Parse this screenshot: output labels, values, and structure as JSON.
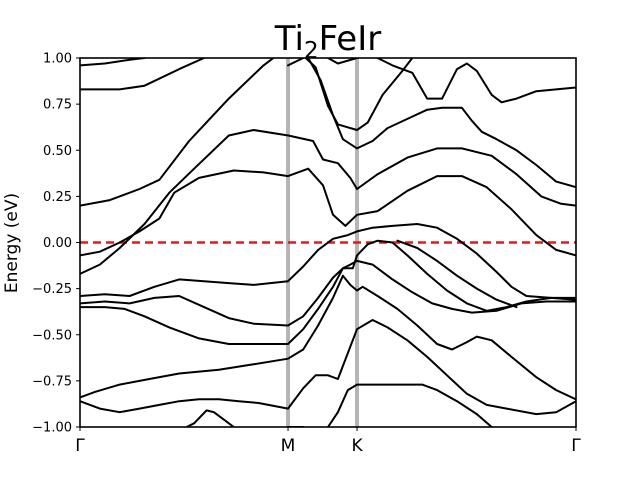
{
  "chart_data": {
    "type": "line",
    "title": "Ti2FeIr",
    "title_base": "Ti",
    "title_sub": "2",
    "title_rest": "FeIr",
    "xlabel": "",
    "ylabel": "Energy (eV)",
    "ylim": [
      -1.0,
      1.0
    ],
    "xlim": [
      0,
      1
    ],
    "yticks": [
      -1.0,
      -0.75,
      -0.5,
      -0.25,
      0.0,
      0.25,
      0.5,
      0.75,
      1.0
    ],
    "ytick_labels": [
      "−1.00",
      "−0.75",
      "−0.50",
      "−0.25",
      "0.00",
      "0.25",
      "0.50",
      "0.75",
      "1.00"
    ],
    "kpoints": [
      {
        "label": "Γ",
        "x": 0.0
      },
      {
        "label": "M",
        "x": 0.4194
      },
      {
        "label": "K",
        "x": 0.5585
      },
      {
        "label": "Γ",
        "x": 1.0
      }
    ],
    "fermi_level": 0.0,
    "colors": {
      "bands": "#000000",
      "fermi": "#e01b1b",
      "kline": "#b5b5b5"
    },
    "grid": false,
    "series": [
      {
        "values": [
          [
            0.0,
            0.96
          ],
          [
            0.05,
            0.97
          ],
          [
            0.1,
            0.99
          ],
          [
            0.13,
            1.0
          ]
        ]
      },
      {
        "values": [
          [
            0.0,
            0.83
          ],
          [
            0.08,
            0.83
          ],
          [
            0.13,
            0.85
          ],
          [
            0.2,
            0.94
          ],
          [
            0.25,
            1.0
          ]
        ]
      },
      {
        "values": [
          [
            0.0,
            0.2
          ],
          [
            0.06,
            0.23
          ],
          [
            0.12,
            0.29
          ],
          [
            0.16,
            0.34
          ],
          [
            0.22,
            0.55
          ],
          [
            0.3,
            0.78
          ],
          [
            0.37,
            0.96
          ],
          [
            0.39,
            1.0
          ]
        ]
      },
      {
        "values": [
          [
            0.0,
            -0.17
          ],
          [
            0.04,
            -0.12
          ],
          [
            0.08,
            -0.03
          ],
          [
            0.13,
            0.1
          ],
          [
            0.18,
            0.27
          ],
          [
            0.23,
            0.4
          ],
          [
            0.3,
            0.58
          ],
          [
            0.35,
            0.61
          ],
          [
            0.42,
            0.58
          ],
          [
            0.47,
            0.55
          ],
          [
            0.49,
            0.45
          ],
          [
            0.52,
            0.43
          ],
          [
            0.545,
            0.35
          ],
          [
            0.5585,
            0.29
          ],
          [
            0.6,
            0.37
          ],
          [
            0.66,
            0.46
          ],
          [
            0.72,
            0.51
          ],
          [
            0.77,
            0.51
          ],
          [
            0.83,
            0.47
          ],
          [
            0.88,
            0.37
          ],
          [
            0.93,
            0.25
          ],
          [
            0.97,
            0.21
          ],
          [
            1.0,
            0.2
          ]
        ]
      },
      {
        "values": [
          [
            0.0,
            -0.07
          ],
          [
            0.04,
            -0.05
          ],
          [
            0.08,
            0.0
          ],
          [
            0.12,
            0.06
          ],
          [
            0.16,
            0.13
          ],
          [
            0.19,
            0.27
          ],
          [
            0.24,
            0.35
          ],
          [
            0.31,
            0.39
          ],
          [
            0.37,
            0.38
          ],
          [
            0.4194,
            0.36
          ],
          [
            0.46,
            0.4
          ],
          [
            0.49,
            0.31
          ],
          [
            0.51,
            0.15
          ],
          [
            0.535,
            0.09
          ],
          [
            0.5585,
            0.15
          ],
          [
            0.6,
            0.17
          ],
          [
            0.66,
            0.28
          ],
          [
            0.72,
            0.36
          ],
          [
            0.77,
            0.36
          ],
          [
            0.82,
            0.3
          ],
          [
            0.87,
            0.18
          ],
          [
            0.92,
            0.04
          ],
          [
            0.96,
            -0.04
          ],
          [
            1.0,
            -0.07
          ]
        ]
      },
      {
        "values": [
          [
            0.0,
            -0.29
          ],
          [
            0.05,
            -0.28
          ],
          [
            0.1,
            -0.29
          ],
          [
            0.15,
            -0.24
          ],
          [
            0.2,
            -0.2
          ],
          [
            0.25,
            -0.21
          ],
          [
            0.3,
            -0.22
          ],
          [
            0.35,
            -0.23
          ],
          [
            0.4194,
            -0.21
          ],
          [
            0.45,
            -0.13
          ],
          [
            0.48,
            -0.04
          ],
          [
            0.51,
            0.02
          ],
          [
            0.54,
            0.04
          ],
          [
            0.5585,
            0.06
          ],
          [
            0.59,
            0.08
          ],
          [
            0.63,
            0.09
          ],
          [
            0.68,
            0.1
          ],
          [
            0.72,
            0.08
          ],
          [
            0.76,
            0.02
          ],
          [
            0.8,
            -0.06
          ],
          [
            0.84,
            -0.16
          ],
          [
            0.87,
            -0.24
          ],
          [
            0.9,
            -0.29
          ],
          [
            0.95,
            -0.3
          ],
          [
            1.0,
            -0.31
          ]
        ]
      },
      {
        "values": [
          [
            0.0,
            -0.33
          ],
          [
            0.05,
            -0.32
          ],
          [
            0.1,
            -0.33
          ],
          [
            0.15,
            -0.3
          ],
          [
            0.2,
            -0.29
          ],
          [
            0.25,
            -0.35
          ],
          [
            0.3,
            -0.41
          ],
          [
            0.35,
            -0.44
          ],
          [
            0.4194,
            -0.45
          ],
          [
            0.45,
            -0.4
          ],
          [
            0.48,
            -0.3
          ],
          [
            0.51,
            -0.19
          ],
          [
            0.53,
            -0.14
          ],
          [
            0.55,
            -0.14
          ],
          [
            0.5585,
            -0.07
          ],
          [
            0.58,
            -0.01
          ],
          [
            0.6,
            0.01
          ],
          [
            0.63,
            0.0
          ],
          [
            0.66,
            -0.07
          ],
          [
            0.7,
            -0.17
          ],
          [
            0.74,
            -0.26
          ],
          [
            0.78,
            -0.33
          ],
          [
            0.82,
            -0.37
          ],
          [
            0.86,
            -0.35
          ],
          [
            0.9,
            -0.32
          ],
          [
            0.95,
            -0.3
          ],
          [
            1.0,
            -0.3
          ]
        ]
      },
      {
        "values": [
          [
            0.0,
            -0.35
          ],
          [
            0.05,
            -0.35
          ],
          [
            0.09,
            -0.36
          ],
          [
            0.13,
            -0.4
          ],
          [
            0.18,
            -0.46
          ],
          [
            0.24,
            -0.52
          ],
          [
            0.3,
            -0.55
          ],
          [
            0.4194,
            -0.55
          ],
          [
            0.45,
            -0.47
          ],
          [
            0.48,
            -0.36
          ],
          [
            0.51,
            -0.24
          ],
          [
            0.53,
            -0.14
          ],
          [
            0.545,
            -0.12
          ],
          [
            0.5585,
            -0.1
          ],
          [
            0.59,
            -0.12
          ],
          [
            0.63,
            -0.2
          ],
          [
            0.67,
            -0.27
          ],
          [
            0.71,
            -0.33
          ],
          [
            0.75,
            -0.36
          ],
          [
            0.79,
            -0.38
          ],
          [
            0.84,
            -0.37
          ],
          [
            0.89,
            -0.33
          ],
          [
            0.94,
            -0.32
          ],
          [
            1.0,
            -0.32
          ]
        ]
      },
      {
        "values": [
          [
            0.0,
            -0.84
          ],
          [
            0.03,
            -0.81
          ],
          [
            0.08,
            -0.77
          ],
          [
            0.14,
            -0.74
          ],
          [
            0.2,
            -0.71
          ],
          [
            0.28,
            -0.69
          ],
          [
            0.35,
            -0.66
          ],
          [
            0.4194,
            -0.63
          ],
          [
            0.45,
            -0.58
          ],
          [
            0.48,
            -0.45
          ],
          [
            0.51,
            -0.3
          ],
          [
            0.53,
            -0.18
          ],
          [
            0.545,
            -0.23
          ],
          [
            0.5585,
            -0.26
          ],
          [
            0.57,
            -0.24
          ],
          [
            0.6,
            -0.29
          ],
          [
            0.64,
            -0.36
          ],
          [
            0.68,
            -0.45
          ],
          [
            0.72,
            -0.55
          ],
          [
            0.75,
            -0.58
          ],
          [
            0.78,
            -0.54
          ],
          [
            0.8,
            -0.51
          ],
          [
            0.83,
            -0.53
          ],
          [
            0.87,
            -0.62
          ],
          [
            0.92,
            -0.73
          ],
          [
            0.96,
            -0.8
          ],
          [
            1.0,
            -0.85
          ]
        ]
      },
      {
        "values": [
          [
            0.0,
            -0.86
          ],
          [
            0.04,
            -0.9
          ],
          [
            0.08,
            -0.92
          ],
          [
            0.12,
            -0.9
          ],
          [
            0.16,
            -0.88
          ],
          [
            0.2,
            -0.86
          ],
          [
            0.24,
            -0.85
          ],
          [
            0.28,
            -0.85
          ],
          [
            0.32,
            -0.86
          ],
          [
            0.36,
            -0.87
          ],
          [
            0.4194,
            -0.9
          ],
          [
            0.45,
            -0.79
          ],
          [
            0.475,
            -0.72
          ],
          [
            0.5,
            -0.72
          ],
          [
            0.52,
            -0.74
          ],
          [
            0.5585,
            -0.47
          ],
          [
            0.59,
            -0.42
          ],
          [
            0.62,
            -0.46
          ],
          [
            0.66,
            -0.53
          ],
          [
            0.7,
            -0.62
          ],
          [
            0.74,
            -0.72
          ],
          [
            0.78,
            -0.82
          ],
          [
            0.82,
            -0.88
          ],
          [
            0.86,
            -0.9
          ],
          [
            0.92,
            -0.93
          ],
          [
            0.96,
            -0.92
          ],
          [
            1.0,
            -0.86
          ]
        ]
      },
      {
        "values": [
          [
            0.215,
            -1.0
          ],
          [
            0.23,
            -0.98
          ],
          [
            0.255,
            -0.91
          ],
          [
            0.27,
            -0.92
          ],
          [
            0.29,
            -0.96
          ],
          [
            0.31,
            -1.0
          ]
        ]
      },
      {
        "values": [
          [
            0.5,
            -1.0
          ],
          [
            0.52,
            -0.92
          ],
          [
            0.54,
            -0.8
          ],
          [
            0.5585,
            -0.77
          ],
          [
            0.6,
            -0.77
          ],
          [
            0.66,
            -0.77
          ],
          [
            0.69,
            -0.77
          ],
          [
            0.72,
            -0.8
          ],
          [
            0.76,
            -0.86
          ],
          [
            0.8,
            -0.93
          ],
          [
            0.83,
            -1.0
          ]
        ]
      },
      {
        "values": [
          [
            0.4194,
            -1.0
          ],
          [
            0.44,
            -1.0
          ],
          [
            0.45,
            -1.0
          ]
        ]
      },
      {
        "values": [
          [
            0.455,
            1.0
          ],
          [
            0.475,
            0.95
          ],
          [
            0.5,
            0.74
          ],
          [
            0.52,
            0.64
          ],
          [
            0.5585,
            0.61
          ],
          [
            0.58,
            0.65
          ],
          [
            0.61,
            0.8
          ],
          [
            0.65,
            0.93
          ],
          [
            0.67,
            1.0
          ]
        ]
      },
      {
        "values": [
          [
            0.46,
            1.0
          ],
          [
            0.485,
            0.88
          ],
          [
            0.51,
            0.69
          ],
          [
            0.53,
            0.56
          ],
          [
            0.5585,
            0.51
          ],
          [
            0.59,
            0.55
          ],
          [
            0.62,
            0.62
          ],
          [
            0.66,
            0.67
          ],
          [
            0.7,
            0.72
          ],
          [
            0.73,
            0.73
          ],
          [
            0.77,
            0.73
          ],
          [
            0.79,
            0.66
          ],
          [
            0.81,
            0.6
          ],
          [
            0.84,
            0.56
          ],
          [
            0.88,
            0.5
          ],
          [
            0.92,
            0.42
          ],
          [
            0.96,
            0.33
          ],
          [
            1.0,
            0.3
          ]
        ]
      },
      {
        "values": [
          [
            0.4194,
            0.96
          ],
          [
            0.45,
            1.0
          ]
        ]
      },
      {
        "values": [
          [
            0.5,
            1.0
          ],
          [
            0.52,
            0.97
          ],
          [
            0.5585,
            1.0
          ]
        ]
      },
      {
        "values": [
          [
            0.73,
            0.78
          ],
          [
            0.76,
            0.94
          ],
          [
            0.78,
            0.97
          ],
          [
            0.8,
            0.93
          ],
          [
            0.83,
            0.8
          ],
          [
            0.85,
            0.76
          ],
          [
            0.88,
            0.78
          ],
          [
            0.92,
            0.82
          ],
          [
            1.0,
            0.84
          ]
        ]
      },
      {
        "values": [
          [
            0.6,
            1.0
          ],
          [
            0.63,
            0.96
          ],
          [
            0.67,
            0.92
          ],
          [
            0.7,
            0.78
          ],
          [
            0.73,
            0.78
          ]
        ]
      },
      {
        "values": [
          [
            0.88,
            -0.35
          ],
          [
            0.84,
            -0.31
          ],
          [
            0.8,
            -0.25
          ],
          [
            0.76,
            -0.18
          ],
          [
            0.72,
            -0.1
          ],
          [
            0.68,
            -0.03
          ],
          [
            0.64,
            0.01
          ]
        ]
      }
    ]
  }
}
